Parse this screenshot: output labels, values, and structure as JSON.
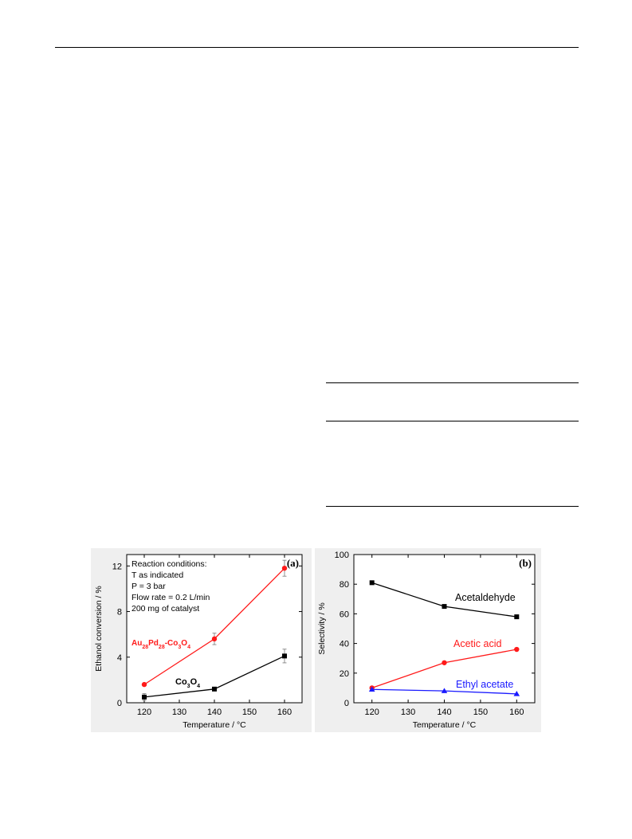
{
  "chart_data": [
    {
      "type": "line",
      "panel_label": "(a)",
      "xlabel": "Temperature / °C",
      "ylabel": "Ethanol conversion / %",
      "xlim": [
        115,
        165
      ],
      "ylim": [
        0,
        13
      ],
      "x_ticks": [
        120,
        130,
        140,
        150,
        160
      ],
      "y_ticks": [
        0,
        4,
        8,
        12
      ],
      "grid": false,
      "annotation_lines": [
        "Reaction conditions:",
        "T as indicated",
        "P = 3 bar",
        "Flow rate = 0.2 L/min",
        "200 mg of catalyst"
      ],
      "series": [
        {
          "name": "Au28Pd28-Co3O4",
          "label_parts": [
            {
              "t": "Au",
              "sub": false
            },
            {
              "t": "28",
              "sub": true
            },
            {
              "t": "Pd",
              "sub": false
            },
            {
              "t": "28",
              "sub": true
            },
            {
              "t": "-Co",
              "sub": false
            },
            {
              "t": "3",
              "sub": true
            },
            {
              "t": "O",
              "sub": false
            },
            {
              "t": "4",
              "sub": true
            }
          ],
          "color": "#ff1a1a",
          "marker": "circle",
          "x": [
            120,
            140,
            160
          ],
          "y": [
            1.6,
            5.6,
            11.8
          ],
          "err": [
            0.1,
            0.5,
            0.7
          ]
        },
        {
          "name": "Co3O4",
          "label_parts": [
            {
              "t": "Co",
              "sub": false
            },
            {
              "t": "3",
              "sub": true
            },
            {
              "t": "O",
              "sub": false
            },
            {
              "t": "4",
              "sub": true
            }
          ],
          "color": "#000000",
          "marker": "square",
          "x": [
            120,
            140,
            160
          ],
          "y": [
            0.5,
            1.2,
            4.1
          ],
          "err": [
            0.3,
            0.1,
            0.6
          ]
        }
      ]
    },
    {
      "type": "line",
      "panel_label": "(b)",
      "xlabel": "Temperature / °C",
      "ylabel": "Selectivity / %",
      "xlim": [
        115,
        165
      ],
      "ylim": [
        0,
        100
      ],
      "x_ticks": [
        120,
        130,
        140,
        150,
        160
      ],
      "y_ticks": [
        0,
        20,
        40,
        60,
        80,
        100
      ],
      "grid": false,
      "series": [
        {
          "name": "Acetaldehyde",
          "color": "#000000",
          "marker": "square",
          "x": [
            120,
            140,
            160
          ],
          "y": [
            81,
            65,
            58
          ]
        },
        {
          "name": "Acetic acid",
          "color": "#ff1a1a",
          "marker": "circle",
          "x": [
            120,
            140,
            160
          ],
          "y": [
            10,
            27,
            36
          ]
        },
        {
          "name": "Ethyl acetate",
          "color": "#1a1aff",
          "marker": "triangle",
          "x": [
            120,
            140,
            160
          ],
          "y": [
            9,
            8,
            6
          ]
        }
      ]
    }
  ]
}
